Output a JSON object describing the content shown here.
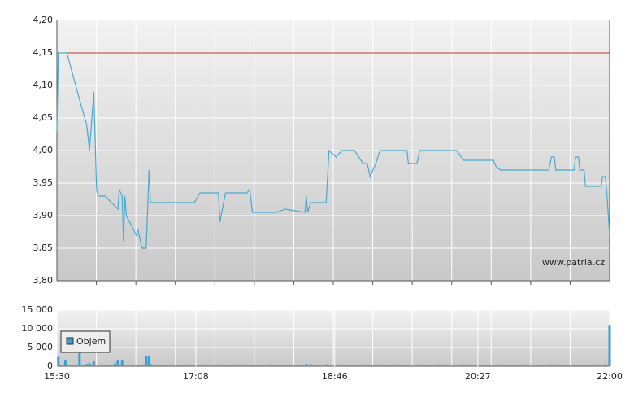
{
  "chart_data": [
    {
      "type": "line",
      "watermark": "www.patria.cz",
      "color": "#4aa8d0",
      "xlim": [
        "15:30",
        "22:00"
      ],
      "ylim": [
        3.8,
        4.2
      ],
      "yticks": [
        {
          "value": 3.8,
          "label": "3,80"
        },
        {
          "value": 3.85,
          "label": "3,85"
        },
        {
          "value": 3.9,
          "label": "3,90"
        },
        {
          "value": 3.95,
          "label": "3,95"
        },
        {
          "value": 4.0,
          "label": "4,00"
        },
        {
          "value": 4.05,
          "label": "4,05"
        },
        {
          "value": 4.1,
          "label": "4,10"
        },
        {
          "value": 4.15,
          "label": "4,15"
        },
        {
          "value": 4.2,
          "label": "4,20"
        }
      ],
      "reference_line": {
        "value": 4.15,
        "color": "#c0392b"
      },
      "x": [
        "15:30",
        "15:31",
        "15:37",
        "15:47",
        "15:51",
        "15:53",
        "15:56",
        "15:58",
        "15:59",
        "16:04",
        "16:13",
        "16:14",
        "16:16",
        "16:17",
        "16:18",
        "16:19",
        "16:26",
        "16:27",
        "16:30",
        "16:33",
        "16:35",
        "16:36",
        "17:07",
        "17:11",
        "17:24",
        "17:25",
        "17:29",
        "17:44",
        "17:46",
        "17:48",
        "18:05",
        "18:11",
        "18:25",
        "18:26",
        "18:27",
        "18:29",
        "18:40",
        "18:42",
        "18:47",
        "18:51",
        "19:00",
        "19:06",
        "19:09",
        "19:11",
        "19:15",
        "19:18",
        "19:37",
        "19:38",
        "19:44",
        "19:46",
        "20:12",
        "20:17",
        "20:38",
        "20:40",
        "20:43",
        "21:17",
        "21:19",
        "21:21",
        "21:22",
        "21:35",
        "21:36",
        "21:38",
        "21:39",
        "21:42",
        "21:43",
        "21:54",
        "21:55",
        "21:57",
        "21:58",
        "22:00"
      ],
      "values": [
        4.03,
        4.15,
        4.15,
        4.07,
        4.04,
        4.0,
        4.09,
        3.94,
        3.93,
        3.93,
        3.91,
        3.94,
        3.93,
        3.86,
        3.93,
        3.9,
        3.87,
        3.88,
        3.85,
        3.85,
        3.97,
        3.92,
        3.92,
        3.935,
        3.935,
        3.89,
        3.935,
        3.935,
        3.94,
        3.905,
        3.905,
        3.91,
        3.905,
        3.93,
        3.905,
        3.92,
        3.92,
        4.0,
        3.99,
        4.0,
        4.0,
        3.98,
        3.98,
        3.96,
        3.98,
        4.0,
        4.0,
        3.98,
        3.98,
        4.0,
        4.0,
        3.985,
        3.985,
        3.975,
        3.97,
        3.97,
        3.99,
        3.99,
        3.97,
        3.97,
        3.99,
        3.99,
        3.97,
        3.97,
        3.945,
        3.945,
        3.96,
        3.96,
        3.935,
        3.87
      ]
    },
    {
      "type": "bar",
      "xlim": [
        "15:30",
        "22:00"
      ],
      "ylim": [
        0,
        15000
      ],
      "xticks": [
        "15:30",
        "17:08",
        "18:46",
        "20:27",
        "22:00"
      ],
      "yticks": [
        0,
        {
          "value": 5000,
          "label": "5 000"
        },
        {
          "value": 10000,
          "label": "10 000"
        },
        {
          "value": 15000,
          "label": "15 000"
        }
      ],
      "x": [
        "15:31",
        "15:36",
        "15:46",
        "15:51",
        "15:53",
        "15:56",
        "16:11",
        "16:13",
        "16:16",
        "16:27",
        "16:33",
        "16:35",
        "16:36",
        "17:00",
        "17:07",
        "17:15",
        "17:25",
        "17:35",
        "17:44",
        "17:50",
        "18:00",
        "18:15",
        "18:26",
        "18:29",
        "18:40",
        "18:43",
        "18:50",
        "19:06",
        "19:15",
        "19:30",
        "19:45",
        "20:00",
        "20:17",
        "20:40",
        "21:00",
        "21:19",
        "21:36",
        "21:50",
        "21:57",
        "22:00"
      ],
      "series": [
        {
          "name": "Objem",
          "color": "#3a9fd0",
          "values": [
            2500,
            1500,
            3500,
            600,
            800,
            1300,
            700,
            1500,
            1500,
            400,
            2800,
            2800,
            600,
            400,
            400,
            300,
            400,
            400,
            400,
            300,
            300,
            400,
            600,
            500,
            500,
            400,
            300,
            400,
            400,
            300,
            400,
            300,
            400,
            300,
            300,
            400,
            400,
            300,
            500,
            11000
          ]
        }
      ]
    }
  ]
}
